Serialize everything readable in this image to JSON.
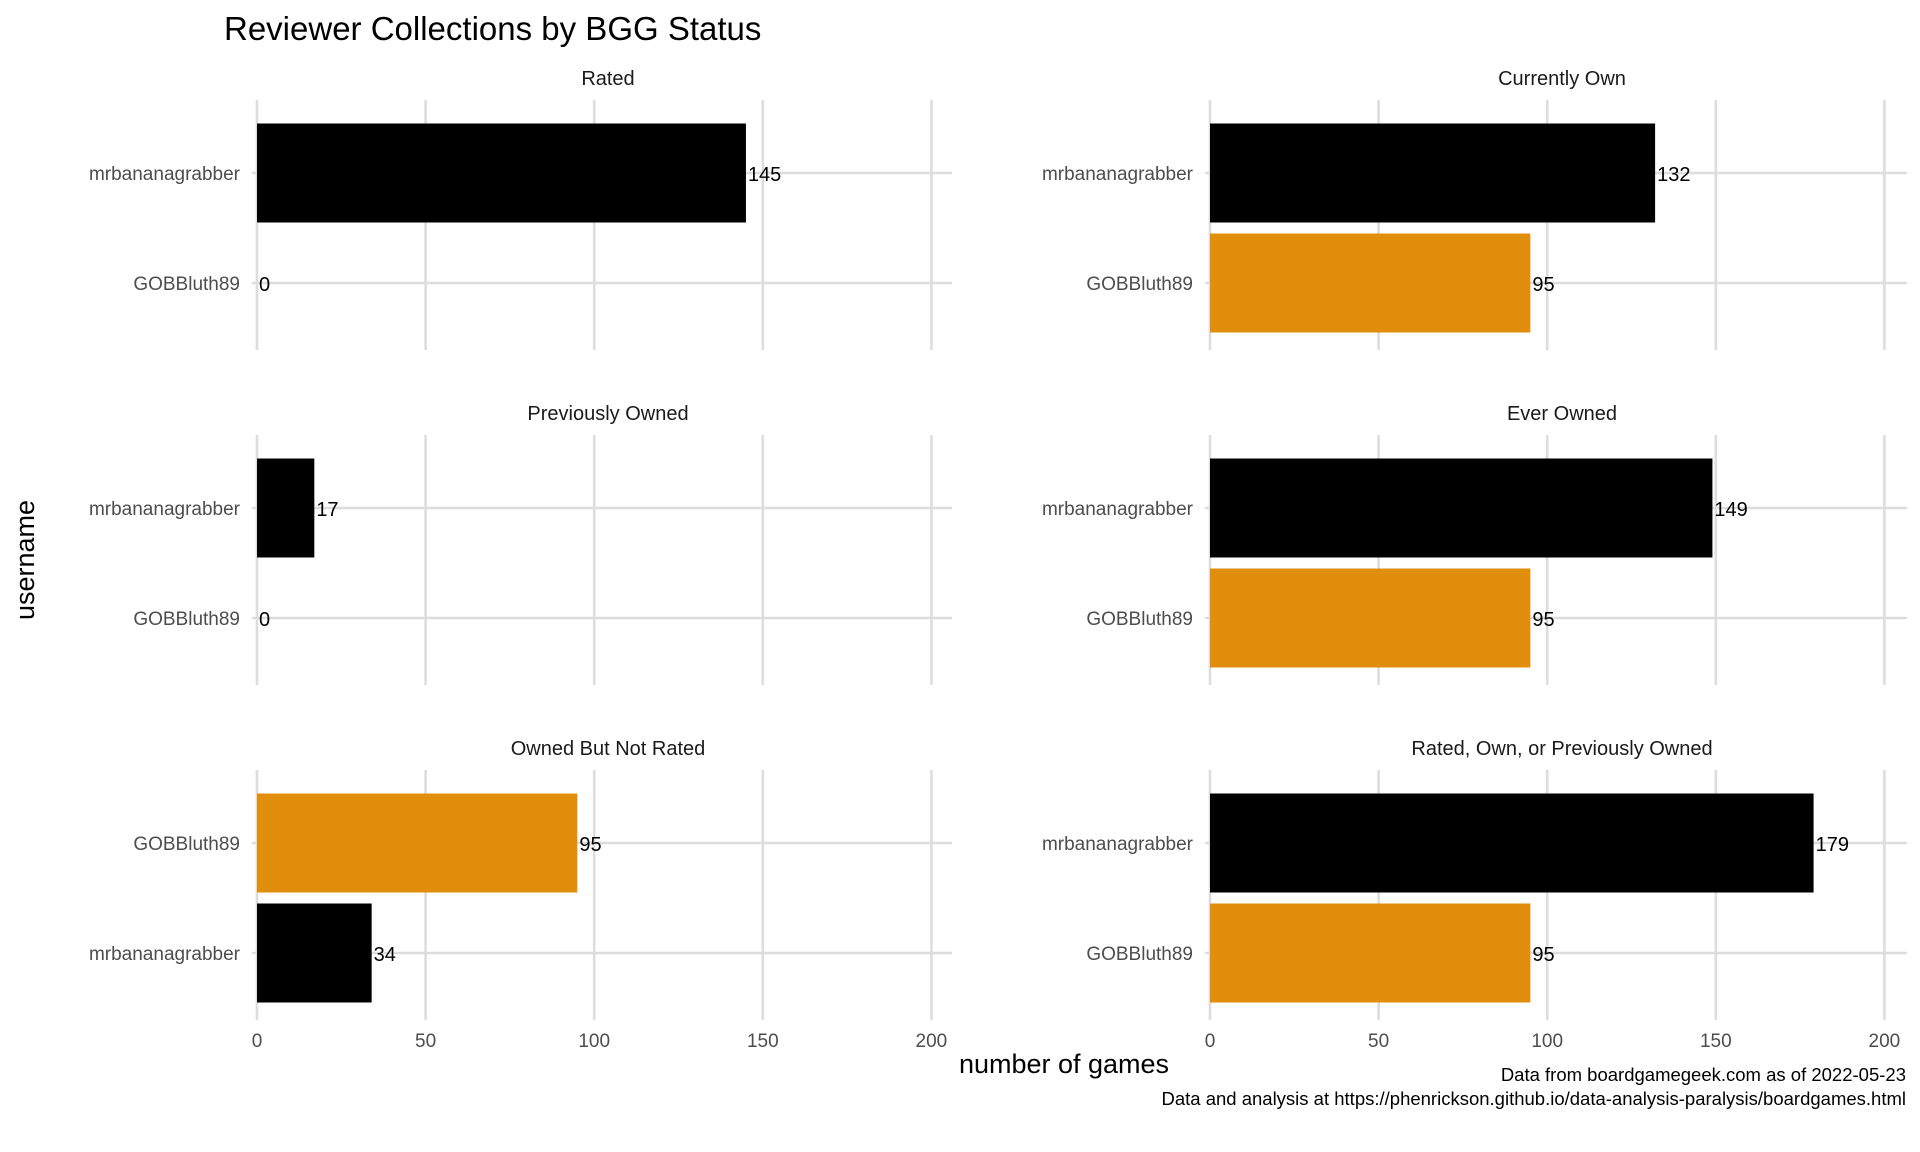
{
  "chart_data": {
    "type": "bar",
    "orientation": "horizontal",
    "title": "Reviewer Collections by BGG Status",
    "xlabel": "number of games",
    "ylabel": "username",
    "xlim": [
      0,
      205
    ],
    "x_ticks": [
      0,
      50,
      100,
      150,
      200
    ],
    "grid": true,
    "colors": {
      "mrbananagrabber": "#000000",
      "GOBBluth89": "#E08E0B"
    },
    "caption": [
      "Data from boardgamegeek.com as of 2022-05-23",
      "Data and analysis at https://phenrickson.github.io/data-analysis-paralysis/boardgames.html"
    ],
    "panels": [
      {
        "title": "Rated",
        "bars": [
          {
            "username": "mrbananagrabber",
            "value": 145
          },
          {
            "username": "GOBBluth89",
            "value": 0
          }
        ]
      },
      {
        "title": "Currently Own",
        "bars": [
          {
            "username": "mrbananagrabber",
            "value": 132
          },
          {
            "username": "GOBBluth89",
            "value": 95
          }
        ]
      },
      {
        "title": "Previously Owned",
        "bars": [
          {
            "username": "mrbananagrabber",
            "value": 17
          },
          {
            "username": "GOBBluth89",
            "value": 0
          }
        ]
      },
      {
        "title": "Ever Owned",
        "bars": [
          {
            "username": "mrbananagrabber",
            "value": 149
          },
          {
            "username": "GOBBluth89",
            "value": 95
          }
        ]
      },
      {
        "title": "Owned But Not Rated",
        "bars": [
          {
            "username": "GOBBluth89",
            "value": 95
          },
          {
            "username": "mrbananagrabber",
            "value": 34
          }
        ]
      },
      {
        "title": "Rated, Own, or Previously Owned",
        "bars": [
          {
            "username": "mrbananagrabber",
            "value": 179
          },
          {
            "username": "GOBBluth89",
            "value": 95
          }
        ]
      }
    ]
  }
}
